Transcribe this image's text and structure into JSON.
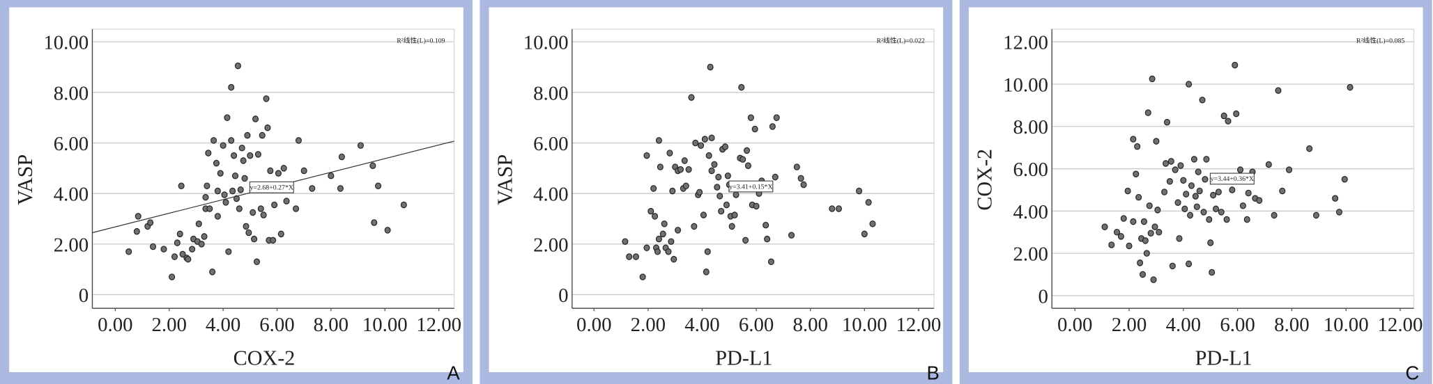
{
  "chart_data": [
    {
      "type": "scatter",
      "panel_label": "A",
      "xlabel": "COX-2",
      "ylabel": "VASP",
      "color": "#707070",
      "grid": true,
      "annotation": "R²线性(L)=0.109",
      "trend": {
        "intercept": 2.68,
        "slope": 0.27,
        "label": "y=2.68+0.27*X"
      },
      "xlim": [
        -0.85,
        12.57
      ],
      "ylim": [
        -0.54,
        10.5
      ],
      "xticks": [
        {
          "value": 0,
          "label": "0.00"
        },
        {
          "value": 2,
          "label": "2.00"
        },
        {
          "value": 4,
          "label": "4.00"
        },
        {
          "value": 6,
          "label": "6.00"
        },
        {
          "value": 8,
          "label": "8.00"
        },
        {
          "value": 10,
          "label": "10.00"
        },
        {
          "value": 12,
          "label": "12.00"
        }
      ],
      "yticks": [
        0,
        {
          "value": 2,
          "label": "2.00"
        },
        {
          "value": 4,
          "label": "4.00"
        },
        {
          "value": 6,
          "label": "6.00"
        },
        {
          "value": 8,
          "label": "8.00"
        },
        {
          "value": 10,
          "label": "10.00"
        }
      ],
      "x": [
        0.5,
        0.8,
        0.85,
        1.2,
        1.3,
        1.4,
        1.8,
        2.1,
        2.2,
        2.3,
        2.4,
        2.45,
        2.5,
        2.65,
        2.7,
        2.85,
        2.9,
        3.05,
        3.1,
        3.2,
        3.3,
        3.35,
        3.35,
        3.4,
        3.45,
        3.5,
        3.6,
        3.65,
        3.75,
        3.8,
        3.8,
        3.9,
        4.0,
        4.05,
        4.1,
        4.15,
        4.2,
        4.3,
        4.3,
        4.35,
        4.4,
        4.45,
        4.5,
        4.55,
        4.6,
        4.65,
        4.7,
        4.75,
        4.8,
        4.85,
        4.9,
        4.95,
        5.0,
        5.1,
        5.15,
        5.2,
        5.25,
        5.3,
        5.4,
        5.45,
        5.5,
        5.6,
        5.65,
        5.7,
        5.75,
        5.85,
        5.9,
        6.05,
        6.15,
        6.25,
        6.35,
        6.7,
        6.8,
        7.0,
        7.3,
        8.0,
        8.35,
        8.4,
        9.1,
        9.55,
        9.6,
        9.75,
        10.1,
        10.7
      ],
      "values": [
        1.7,
        2.5,
        3.1,
        2.7,
        2.85,
        1.9,
        1.8,
        0.7,
        1.5,
        2.05,
        2.4,
        4.3,
        1.6,
        1.45,
        1.4,
        1.8,
        2.2,
        2.1,
        2.8,
        2.0,
        2.3,
        3.4,
        3.85,
        4.3,
        5.6,
        3.4,
        0.9,
        6.1,
        5.2,
        4.1,
        3.1,
        4.8,
        5.9,
        3.95,
        3.65,
        7.0,
        1.7,
        8.2,
        6.1,
        4.1,
        5.5,
        4.7,
        3.8,
        9.05,
        3.4,
        4.15,
        5.8,
        5.3,
        4.6,
        2.7,
        6.3,
        2.45,
        5.5,
        3.25,
        2.2,
        6.95,
        1.3,
        5.55,
        3.4,
        6.3,
        3.15,
        7.75,
        6.6,
        2.15,
        4.9,
        2.15,
        3.55,
        4.8,
        2.4,
        5.0,
        3.7,
        3.4,
        6.1,
        4.9,
        4.2,
        4.7,
        4.2,
        5.45,
        5.9,
        5.1,
        2.85,
        4.3,
        2.55,
        3.55
      ]
    },
    {
      "type": "scatter",
      "panel_label": "B",
      "xlabel": "PD-L1",
      "ylabel": "VASP",
      "color": "#707070",
      "grid": true,
      "annotation": "R²线性(L)=0.022",
      "trend": {
        "intercept": 3.41,
        "slope": 0.15,
        "label": "y=3.41+0.15*X"
      },
      "xlim": [
        -0.81,
        12.57
      ],
      "ylim": [
        -0.54,
        10.5
      ],
      "xticks": [
        {
          "value": 0,
          "label": "0.00"
        },
        {
          "value": 2,
          "label": "2.00"
        },
        {
          "value": 4,
          "label": "4.00"
        },
        {
          "value": 6,
          "label": "6.00"
        },
        {
          "value": 8,
          "label": "8.00"
        },
        {
          "value": 10,
          "label": "10.00"
        },
        {
          "value": 12,
          "label": "12.00"
        }
      ],
      "yticks": [
        0,
        {
          "value": 2,
          "label": "2.00"
        },
        {
          "value": 4,
          "label": "4.00"
        },
        {
          "value": 6,
          "label": "6.00"
        },
        {
          "value": 8,
          "label": "8.00"
        },
        {
          "value": 10,
          "label": "10.00"
        }
      ],
      "x": [
        1.15,
        1.3,
        1.55,
        1.8,
        1.95,
        1.95,
        2.1,
        2.2,
        2.25,
        2.3,
        2.35,
        2.4,
        2.4,
        2.45,
        2.55,
        2.6,
        2.65,
        2.75,
        2.8,
        2.85,
        2.9,
        2.95,
        3.0,
        3.1,
        3.1,
        3.2,
        3.3,
        3.35,
        3.4,
        3.5,
        3.6,
        3.7,
        3.75,
        3.85,
        3.9,
        3.95,
        4.05,
        4.1,
        4.15,
        4.2,
        4.25,
        4.3,
        4.35,
        4.35,
        4.45,
        4.55,
        4.6,
        4.65,
        4.7,
        4.75,
        4.85,
        4.9,
        4.95,
        5.0,
        5.05,
        5.1,
        5.2,
        5.25,
        5.3,
        5.4,
        5.45,
        5.5,
        5.6,
        5.65,
        5.7,
        5.8,
        5.85,
        5.95,
        6.0,
        6.1,
        6.2,
        6.35,
        6.4,
        6.55,
        6.6,
        6.7,
        6.75,
        7.3,
        7.5,
        7.65,
        7.75,
        8.8,
        9.05,
        9.8,
        10.0,
        10.15,
        10.3
      ],
      "values": [
        2.1,
        1.5,
        1.5,
        0.7,
        1.85,
        5.5,
        3.3,
        4.2,
        3.1,
        1.85,
        1.7,
        6.1,
        2.2,
        5.05,
        2.4,
        2.8,
        1.85,
        1.7,
        5.6,
        2.1,
        4.1,
        1.4,
        5.05,
        2.55,
        4.9,
        4.95,
        4.2,
        5.3,
        4.3,
        4.95,
        7.8,
        2.7,
        6.0,
        3.95,
        4.05,
        5.9,
        3.15,
        6.15,
        0.9,
        1.7,
        5.5,
        9.0,
        6.2,
        4.9,
        5.15,
        4.25,
        4.65,
        3.9,
        3.3,
        5.75,
        5.85,
        3.55,
        4.7,
        4.35,
        3.1,
        2.7,
        3.15,
        3.95,
        4.25,
        5.4,
        8.2,
        5.35,
        2.15,
        5.7,
        5.1,
        7.0,
        3.55,
        6.55,
        3.5,
        4.0,
        4.5,
        2.75,
        2.2,
        1.3,
        6.65,
        4.65,
        7.0,
        2.35,
        5.05,
        4.6,
        4.35,
        3.4,
        3.4,
        4.1,
        2.4,
        3.65,
        2.8
      ]
    },
    {
      "type": "scatter",
      "panel_label": "C",
      "xlabel": "PD-L1",
      "ylabel": "COX-2",
      "color": "#707070",
      "grid": true,
      "annotation": "R²线性(L)=0.085",
      "trend": {
        "intercept": 3.44,
        "slope": 0.36,
        "label": "y=3.44+0.36*X"
      },
      "xlim": [
        -0.85,
        12.5
      ],
      "ylim": [
        -0.6,
        12.6
      ],
      "xticks": [
        {
          "value": 0,
          "label": "0.00"
        },
        {
          "value": 2,
          "label": "2.00"
        },
        {
          "value": 4,
          "label": "4.00"
        },
        {
          "value": 6,
          "label": "6.00"
        },
        {
          "value": 8,
          "label": "8.00"
        },
        {
          "value": 10,
          "label": "10.00"
        },
        {
          "value": 12,
          "label": "12.00"
        }
      ],
      "yticks": [
        0,
        {
          "value": 2,
          "label": "2.00"
        },
        {
          "value": 4,
          "label": "4.00"
        },
        {
          "value": 6,
          "label": "6.00"
        },
        {
          "value": 8,
          "label": "8.00"
        },
        {
          "value": 10,
          "label": "10.00"
        },
        {
          "value": 12,
          "label": "12.00"
        }
      ],
      "x": [
        1.1,
        1.35,
        1.55,
        1.7,
        1.8,
        1.95,
        2.0,
        2.15,
        2.15,
        2.25,
        2.3,
        2.35,
        2.4,
        2.45,
        2.5,
        2.55,
        2.6,
        2.65,
        2.7,
        2.75,
        2.8,
        2.85,
        2.9,
        2.95,
        3.0,
        3.05,
        3.1,
        3.3,
        3.35,
        3.4,
        3.5,
        3.55,
        3.6,
        3.7,
        3.8,
        3.85,
        3.9,
        4.0,
        4.05,
        4.1,
        4.2,
        4.2,
        4.25,
        4.3,
        4.4,
        4.45,
        4.5,
        4.55,
        4.6,
        4.7,
        4.75,
        4.8,
        4.85,
        4.95,
        5.0,
        5.05,
        5.1,
        5.2,
        5.3,
        5.4,
        5.5,
        5.6,
        5.65,
        5.7,
        5.8,
        5.9,
        5.95,
        6.1,
        6.2,
        6.35,
        6.4,
        6.55,
        6.65,
        6.8,
        7.15,
        7.35,
        7.5,
        7.65,
        7.9,
        8.65,
        8.9,
        9.6,
        9.75,
        9.95,
        10.15
      ],
      "values": [
        3.25,
        2.4,
        3.0,
        2.8,
        3.65,
        4.95,
        2.35,
        3.5,
        7.4,
        5.75,
        7.05,
        4.65,
        1.55,
        2.7,
        1.0,
        3.5,
        2.6,
        2.0,
        8.65,
        4.25,
        2.95,
        10.25,
        0.75,
        3.25,
        7.3,
        4.05,
        3.0,
        4.9,
        6.25,
        8.2,
        5.4,
        6.35,
        1.4,
        5.95,
        4.4,
        2.7,
        6.15,
        5.45,
        4.1,
        4.8,
        1.5,
        10.0,
        3.8,
        5.2,
        6.45,
        4.7,
        4.2,
        5.85,
        4.95,
        9.25,
        3.95,
        5.5,
        6.45,
        3.6,
        2.5,
        1.1,
        4.75,
        4.1,
        4.9,
        3.95,
        8.5,
        3.6,
        8.25,
        5.5,
        5.0,
        10.9,
        8.6,
        5.95,
        4.25,
        3.6,
        4.85,
        5.85,
        4.6,
        4.5,
        6.2,
        3.8,
        9.7,
        4.95,
        5.95,
        6.95,
        3.8,
        4.6,
        3.95,
        5.5,
        9.85
      ]
    }
  ]
}
